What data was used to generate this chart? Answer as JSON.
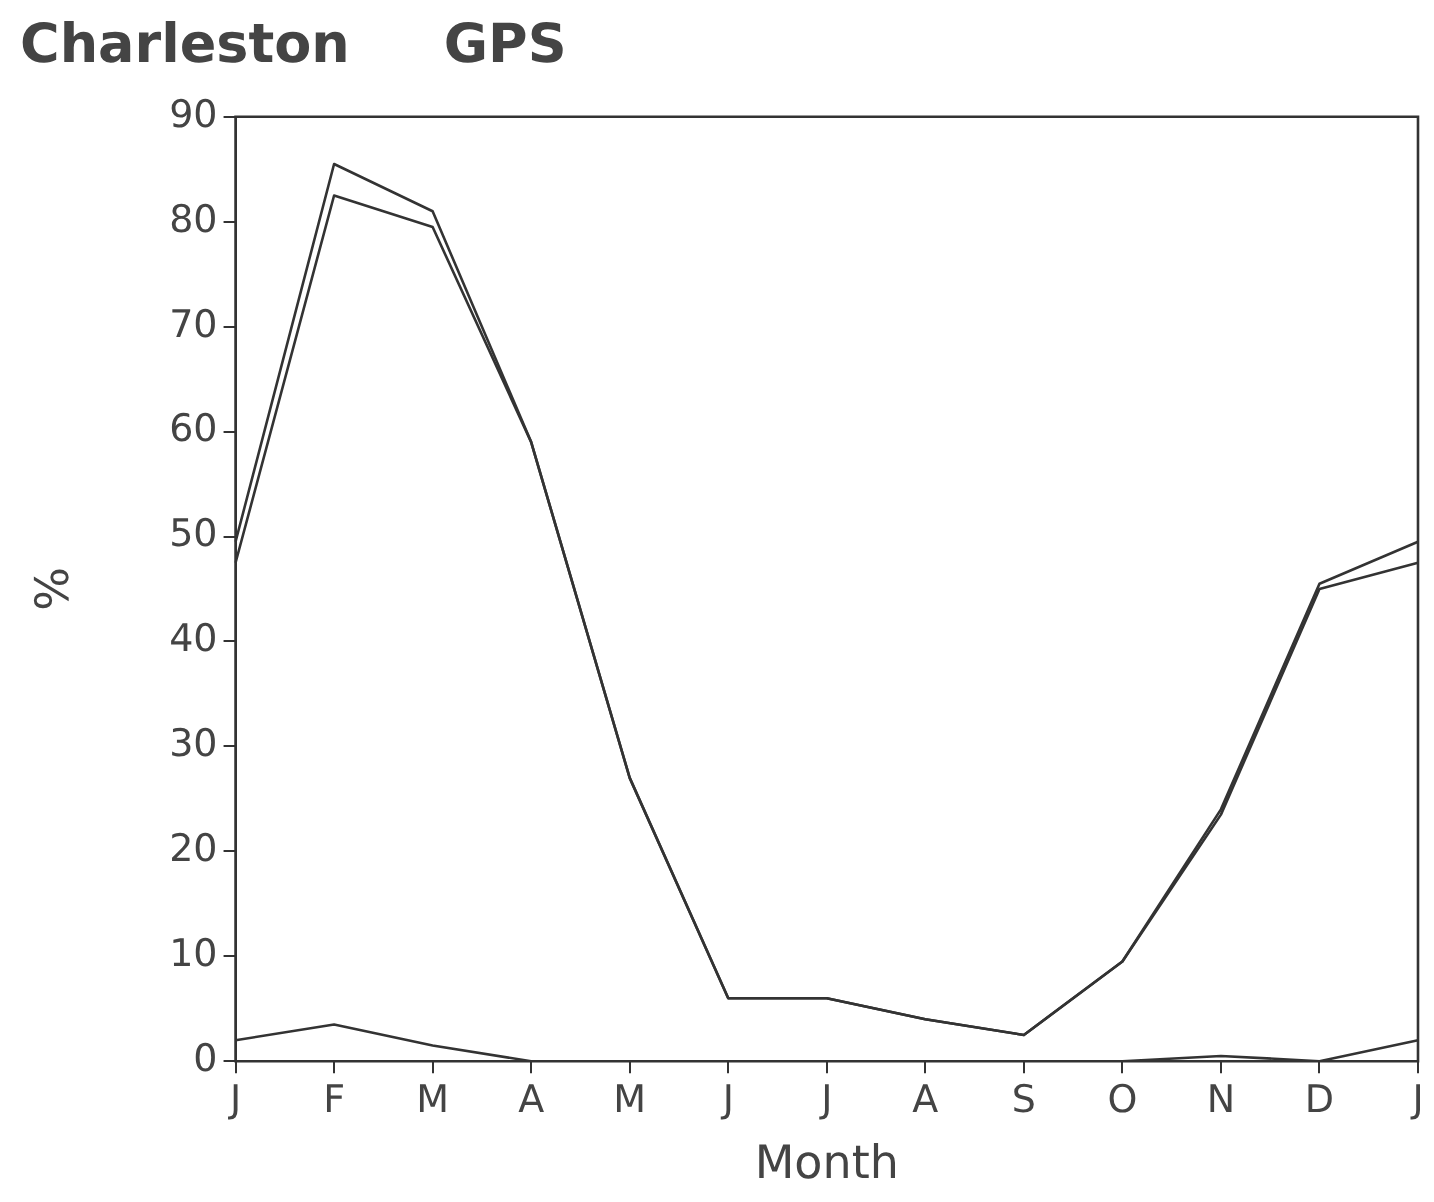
{
  "chart_data": {
    "type": "line",
    "title": "Charleston     GPS",
    "xlabel": "Month",
    "ylabel": "%",
    "categories": [
      "J",
      "F",
      "M",
      "A",
      "M",
      "J",
      "J",
      "A",
      "S",
      "O",
      "N",
      "D",
      "J"
    ],
    "series": [
      {
        "color": "#333333",
        "values": [
          49.5,
          85.5,
          81,
          59,
          27,
          6,
          6,
          4,
          2.5,
          9.5,
          24,
          45.5,
          49.5
        ]
      },
      {
        "color": "#333333",
        "values": [
          47.5,
          82.5,
          79.5,
          59,
          27,
          6,
          6,
          4,
          2.5,
          9.5,
          23.5,
          45,
          47.5
        ]
      },
      {
        "color": "#333333",
        "values": [
          2,
          3.5,
          1.5,
          0,
          0,
          0,
          0,
          0,
          0,
          0,
          0.5,
          0,
          2
        ]
      }
    ],
    "ylim": [
      0,
      90
    ],
    "yticks": [
      0,
      10,
      20,
      30,
      40,
      50,
      60,
      70,
      80,
      90
    ],
    "grid": false,
    "legend": false,
    "marker": "none",
    "line_style": "solid"
  }
}
